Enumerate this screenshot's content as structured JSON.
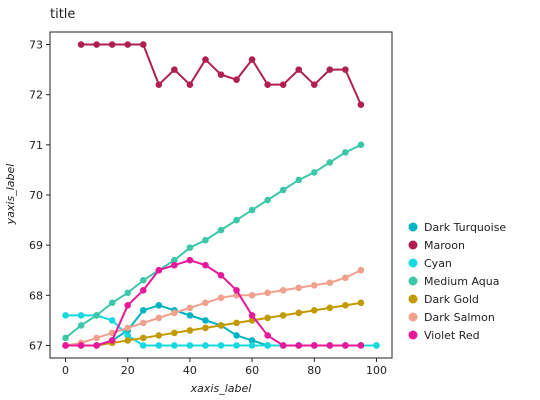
{
  "chart_data": {
    "type": "line",
    "title": "title",
    "xlabel": "xaxis_label",
    "ylabel": "yaxis_label",
    "xlim": [
      -5,
      105
    ],
    "ylim": [
      66.75,
      73.25
    ],
    "x_ticks": [
      0,
      20,
      40,
      60,
      80,
      100
    ],
    "y_ticks": [
      67,
      68,
      69,
      70,
      71,
      72,
      73
    ],
    "grid": false,
    "legend_position": "right",
    "series": [
      {
        "name": "Dark Turquoise",
        "color": "#00b3c2",
        "points": [
          [
            0,
            67
          ],
          [
            5,
            67
          ],
          [
            10,
            67
          ],
          [
            15,
            67.1
          ],
          [
            20,
            67.3
          ],
          [
            25,
            67.7
          ],
          [
            30,
            67.8
          ],
          [
            35,
            67.7
          ],
          [
            40,
            67.6
          ],
          [
            45,
            67.5
          ],
          [
            50,
            67.4
          ],
          [
            55,
            67.2
          ],
          [
            60,
            67.1
          ],
          [
            65,
            67
          ],
          [
            70,
            67
          ],
          [
            75,
            67
          ],
          [
            80,
            67
          ],
          [
            85,
            67
          ],
          [
            90,
            67
          ],
          [
            95,
            67
          ],
          [
            100,
            67
          ]
        ]
      },
      {
        "name": "Maroon",
        "color": "#b0204f",
        "points": [
          [
            5,
            73
          ],
          [
            10,
            73
          ],
          [
            15,
            73
          ],
          [
            20,
            73
          ],
          [
            25,
            73
          ],
          [
            30,
            72.2
          ],
          [
            35,
            72.5
          ],
          [
            40,
            72.2
          ],
          [
            45,
            72.7
          ],
          [
            50,
            72.4
          ],
          [
            55,
            72.3
          ],
          [
            60,
            72.7
          ],
          [
            65,
            72.2
          ],
          [
            70,
            72.2
          ],
          [
            75,
            72.5
          ],
          [
            80,
            72.2
          ],
          [
            85,
            72.5
          ],
          [
            90,
            72.5
          ],
          [
            95,
            71.8
          ]
        ]
      },
      {
        "name": "Cyan",
        "color": "#18d8e0",
        "points": [
          [
            0,
            67.6
          ],
          [
            5,
            67.6
          ],
          [
            10,
            67.6
          ],
          [
            15,
            67.5
          ],
          [
            20,
            67.2
          ],
          [
            25,
            67
          ],
          [
            30,
            67
          ],
          [
            35,
            67
          ],
          [
            40,
            67
          ],
          [
            45,
            67
          ],
          [
            50,
            67
          ],
          [
            55,
            67
          ],
          [
            60,
            67
          ],
          [
            65,
            67
          ],
          [
            70,
            67
          ],
          [
            75,
            67
          ],
          [
            80,
            67
          ],
          [
            85,
            67
          ],
          [
            90,
            67
          ],
          [
            95,
            67
          ],
          [
            100,
            67
          ]
        ]
      },
      {
        "name": "Medium Aqua",
        "color": "#3cc8a8",
        "points": [
          [
            0,
            67.15
          ],
          [
            5,
            67.4
          ],
          [
            10,
            67.6
          ],
          [
            15,
            67.85
          ],
          [
            20,
            68.05
          ],
          [
            25,
            68.3
          ],
          [
            30,
            68.5
          ],
          [
            35,
            68.7
          ],
          [
            40,
            68.95
          ],
          [
            45,
            69.1
          ],
          [
            50,
            69.3
          ],
          [
            55,
            69.5
          ],
          [
            60,
            69.7
          ],
          [
            65,
            69.9
          ],
          [
            70,
            70.1
          ],
          [
            75,
            70.3
          ],
          [
            80,
            70.45
          ],
          [
            85,
            70.65
          ],
          [
            90,
            70.85
          ],
          [
            95,
            71
          ]
        ]
      },
      {
        "name": "Dark Gold",
        "color": "#c29a00",
        "points": [
          [
            0,
            67
          ],
          [
            5,
            67
          ],
          [
            10,
            67
          ],
          [
            15,
            67.05
          ],
          [
            20,
            67.1
          ],
          [
            25,
            67.15
          ],
          [
            30,
            67.2
          ],
          [
            35,
            67.25
          ],
          [
            40,
            67.3
          ],
          [
            45,
            67.35
          ],
          [
            50,
            67.4
          ],
          [
            55,
            67.45
          ],
          [
            60,
            67.5
          ],
          [
            65,
            67.55
          ],
          [
            70,
            67.6
          ],
          [
            75,
            67.65
          ],
          [
            80,
            67.7
          ],
          [
            85,
            67.75
          ],
          [
            90,
            67.8
          ],
          [
            95,
            67.85
          ]
        ]
      },
      {
        "name": "Dark Salmon",
        "color": "#f0a08c",
        "points": [
          [
            0,
            67
          ],
          [
            5,
            67.05
          ],
          [
            10,
            67.15
          ],
          [
            15,
            67.25
          ],
          [
            20,
            67.35
          ],
          [
            25,
            67.45
          ],
          [
            30,
            67.55
          ],
          [
            35,
            67.65
          ],
          [
            40,
            67.75
          ],
          [
            45,
            67.85
          ],
          [
            50,
            67.95
          ],
          [
            55,
            68
          ],
          [
            60,
            68
          ],
          [
            65,
            68.05
          ],
          [
            70,
            68.1
          ],
          [
            75,
            68.15
          ],
          [
            80,
            68.2
          ],
          [
            85,
            68.25
          ],
          [
            90,
            68.35
          ],
          [
            95,
            68.5
          ]
        ]
      },
      {
        "name": "Violet Red",
        "color": "#e8189a",
        "points": [
          [
            0,
            67
          ],
          [
            5,
            67
          ],
          [
            10,
            67
          ],
          [
            15,
            67.1
          ],
          [
            20,
            67.8
          ],
          [
            25,
            68.1
          ],
          [
            30,
            68.5
          ],
          [
            35,
            68.6
          ],
          [
            40,
            68.7
          ],
          [
            45,
            68.6
          ],
          [
            50,
            68.4
          ],
          [
            55,
            68.1
          ],
          [
            60,
            67.6
          ],
          [
            65,
            67.2
          ],
          [
            70,
            67
          ],
          [
            75,
            67
          ],
          [
            80,
            67
          ],
          [
            85,
            67
          ],
          [
            90,
            67
          ],
          [
            95,
            67
          ]
        ]
      }
    ]
  }
}
